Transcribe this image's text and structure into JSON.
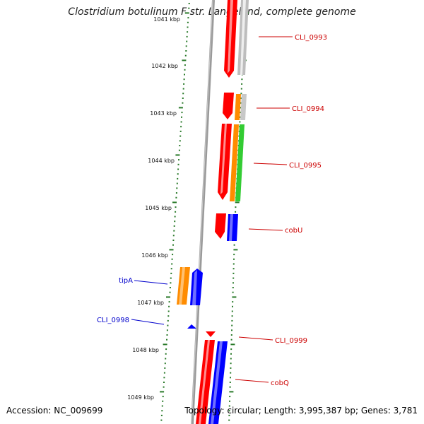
{
  "title": "Clostridium botulinum F str. Langeland, complete genome",
  "footer": {
    "accession": "Accession: NC_009699",
    "summary": "Topology: circular; Length: 3,995,387 bp; Genes: 3,781"
  },
  "ruler": {
    "labels": [
      "1041 kbp",
      "1042 kbp",
      "1043 kbp",
      "1044 kbp",
      "1045 kbp",
      "1046 kbp",
      "1047 kbp",
      "1048 kbp",
      "1049 kbp"
    ]
  },
  "genes": {
    "forward": [
      "CLI_0993",
      "CLI_0994",
      "CLI_0995",
      "cobU",
      "CLI_0999",
      "cobQ"
    ],
    "reverse": [
      "tipA",
      "CLI_0998"
    ]
  },
  "colors": {
    "forward_label": "#cc0000",
    "reverse_label": "#0000cc",
    "ruler_ticks": "#2a7a2a",
    "cds": "#ff0000",
    "orange": "#ff8c00",
    "green": "#33cc33",
    "blue": "#0000ff",
    "grey": "#c8c8c8",
    "backbone": "#888888"
  }
}
